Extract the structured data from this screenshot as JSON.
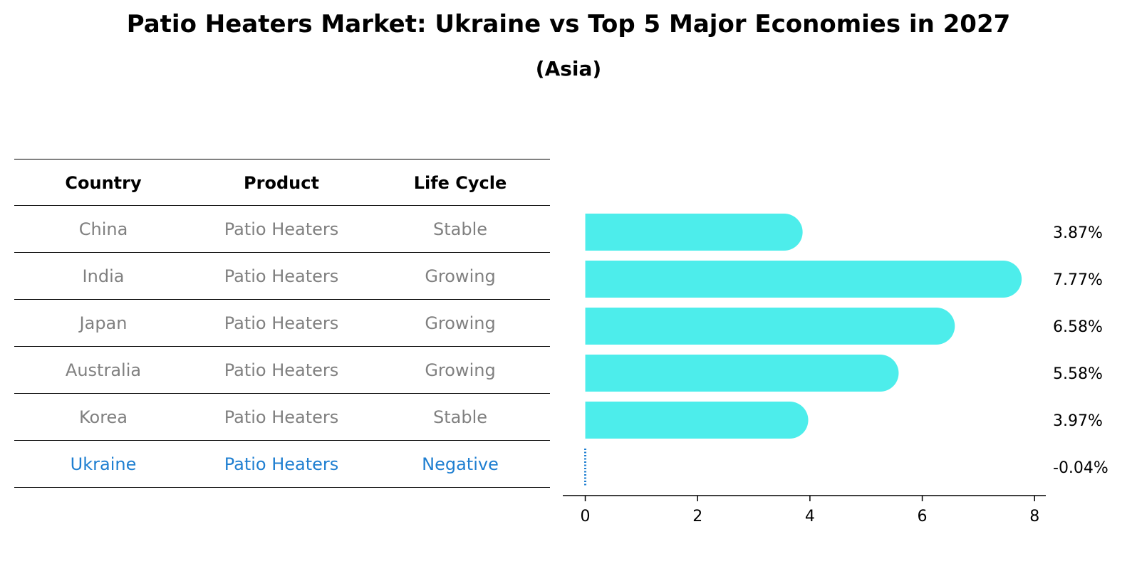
{
  "chart_data": {
    "type": "bar",
    "orientation": "horizontal",
    "title": "Patio Heaters Market: Ukraine vs Top 5 Major Economies in 2027",
    "subtitle": "(Asia)",
    "table": {
      "headers": [
        "Country",
        "Product",
        "Life Cycle"
      ],
      "rows": [
        {
          "country": "China",
          "product": "Patio Heaters",
          "life_cycle": "Stable"
        },
        {
          "country": "India",
          "product": "Patio Heaters",
          "life_cycle": "Growing"
        },
        {
          "country": "Japan",
          "product": "Patio Heaters",
          "life_cycle": "Growing"
        },
        {
          "country": "Australia",
          "product": "Patio Heaters",
          "life_cycle": "Growing"
        },
        {
          "country": "Korea",
          "product": "Patio Heaters",
          "life_cycle": "Stable"
        },
        {
          "country": "Ukraine",
          "product": "Patio Heaters",
          "life_cycle": "Negative"
        }
      ]
    },
    "categories": [
      "China",
      "India",
      "Japan",
      "Australia",
      "Korea",
      "Ukraine"
    ],
    "values": [
      3.87,
      7.77,
      6.58,
      5.58,
      3.97,
      -0.04
    ],
    "value_labels": [
      "3.87%",
      "7.77%",
      "6.58%",
      "5.58%",
      "3.97%",
      "-0.04%"
    ],
    "highlight_category": "Ukraine",
    "xlim": [
      -0.4,
      8.2
    ],
    "xticks": [
      0,
      2,
      4,
      6,
      8
    ],
    "xlabel": "",
    "ylabel": "",
    "colors": {
      "bar": "#4DEDEB",
      "highlight": "#1f7fd1",
      "muted_text": "#808080"
    }
  }
}
